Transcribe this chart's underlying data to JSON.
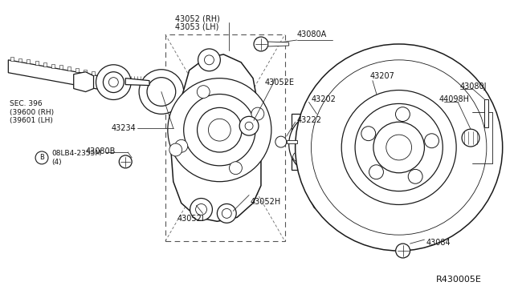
{
  "bg_color": "#ffffff",
  "line_color": "#1a1a1a",
  "ref_code": "R430005E",
  "font_color": "#111111",
  "font_size": 7,
  "figsize": [
    6.4,
    3.72
  ],
  "dpi": 100,
  "labels": {
    "sec_ref": "SEC. 396\n(39600 (RH)\n(39601 (LH)",
    "b_label": "B",
    "b_bolt": "08LB4-2355M\n(4)",
    "l43080A": "43080A",
    "l43052RH": "43052 (RH)\n43053 (LH)",
    "l43052E": "43052E",
    "l43234": "43234",
    "l43202": "43202",
    "l43222": "43222",
    "l43080B": "43080B",
    "l43052H": "43052H",
    "l43052I": "43052I",
    "l43207": "43207",
    "l44098H": "44098H",
    "l43084": "43084",
    "l43080J": "43080J"
  }
}
